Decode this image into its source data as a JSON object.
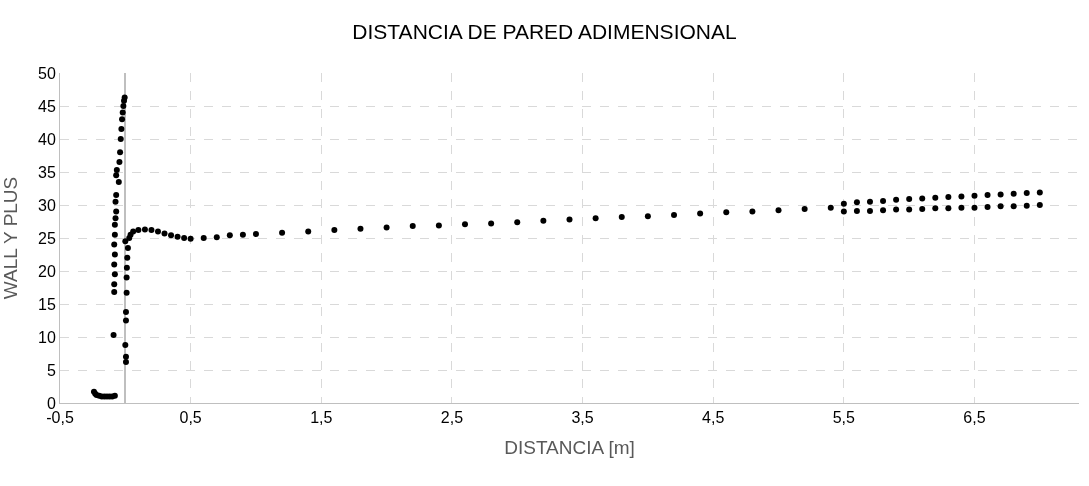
{
  "chart_data": {
    "type": "scatter",
    "title": "DISTANCIA DE PARED ADIMENSIONAL",
    "xlabel": "DISTANCIA [m]",
    "ylabel": "WALL Y PLUS",
    "xlim": [
      -0.5,
      7.3
    ],
    "xticks": [
      {
        "value": -0.5,
        "label": "-0,5"
      },
      {
        "value": 0.5,
        "label": "0,5"
      },
      {
        "value": 1.5,
        "label": "1,5"
      },
      {
        "value": 2.5,
        "label": "2,5"
      },
      {
        "value": 3.5,
        "label": "3,5"
      },
      {
        "value": 4.5,
        "label": "4,5"
      },
      {
        "value": 5.5,
        "label": "5,5"
      },
      {
        "value": 6.5,
        "label": "6,5"
      }
    ],
    "ylim": [
      0,
      50
    ],
    "yticks": [
      0,
      5,
      10,
      15,
      20,
      25,
      30,
      35,
      40,
      45,
      50
    ],
    "grid": true,
    "marker": "circle",
    "series": [
      {
        "color": "#000000",
        "x": [
          -0.24,
          -0.23,
          -0.22,
          -0.2,
          -0.18,
          -0.16,
          -0.14,
          -0.12,
          -0.1,
          -0.08,
          -0.09,
          -0.085,
          -0.085,
          -0.08,
          -0.085,
          -0.08,
          -0.085,
          -0.08,
          -0.08,
          -0.075,
          -0.07,
          -0.075,
          -0.07,
          -0.07,
          -0.065,
          -0.05,
          -0.045,
          -0.04,
          -0.035,
          -0.03,
          -0.025,
          -0.02,
          -0.015,
          -0.01,
          -0.005,
          0.005,
          0.005,
          0.0,
          0.005,
          0.005,
          0.01,
          0.01,
          0.012,
          0.015,
          0.02,
          0.0,
          0.03,
          0.04,
          0.06,
          0.1,
          0.15,
          0.2,
          0.25,
          0.3,
          0.35,
          0.4,
          0.45,
          0.5,
          0.6,
          0.7,
          0.8,
          0.9,
          1.0,
          1.2,
          1.4,
          1.6,
          1.8,
          2.0,
          2.2,
          2.4,
          2.6,
          2.8,
          3.0,
          3.2,
          3.4,
          3.6,
          3.8,
          4.0,
          4.2,
          4.4,
          4.6,
          4.8,
          5.0,
          5.2,
          5.4,
          5.5,
          5.6,
          5.7,
          5.8,
          5.9,
          6.0,
          6.1,
          6.2,
          6.3,
          6.4,
          6.5,
          6.6,
          6.7,
          6.8,
          6.9,
          7.0,
          5.5,
          5.6,
          5.7,
          5.8,
          5.9,
          6.0,
          6.1,
          6.2,
          6.3,
          6.4,
          6.5,
          6.6,
          6.7,
          6.8,
          6.9,
          7.0
        ],
        "values": [
          1.7,
          1.4,
          1.2,
          1.1,
          1.0,
          1.0,
          1.0,
          1.0,
          1.0,
          1.1,
          10.3,
          16.8,
          18,
          19.5,
          21,
          22.5,
          24,
          25.5,
          27,
          28,
          29,
          30.5,
          31.5,
          34.5,
          35.3,
          33.5,
          36.5,
          38,
          40,
          41.5,
          43,
          44,
          45,
          45.8,
          46.3,
          6.2,
          7,
          8.8,
          12.5,
          13.8,
          16.7,
          19,
          20.5,
          22,
          23.5,
          24.5,
          25,
          25.5,
          26,
          26.2,
          26.3,
          26.2,
          26,
          25.7,
          25.4,
          25.2,
          25.0,
          24.9,
          25.0,
          25.1,
          25.4,
          25.5,
          25.6,
          25.8,
          26.0,
          26.2,
          26.4,
          26.6,
          26.8,
          26.9,
          27.1,
          27.2,
          27.4,
          27.6,
          27.8,
          28.0,
          28.2,
          28.3,
          28.5,
          28.7,
          28.9,
          29.0,
          29.2,
          29.4,
          29.6,
          30.2,
          30.4,
          30.5,
          30.6,
          30.8,
          30.9,
          31.0,
          31.1,
          31.2,
          31.3,
          31.4,
          31.5,
          31.6,
          31.7,
          31.8,
          31.9,
          29.0,
          29.1,
          29.1,
          29.2,
          29.3,
          29.3,
          29.4,
          29.5,
          29.5,
          29.6,
          29.6,
          29.7,
          29.8,
          29.8,
          29.9,
          30.0
        ]
      }
    ]
  }
}
